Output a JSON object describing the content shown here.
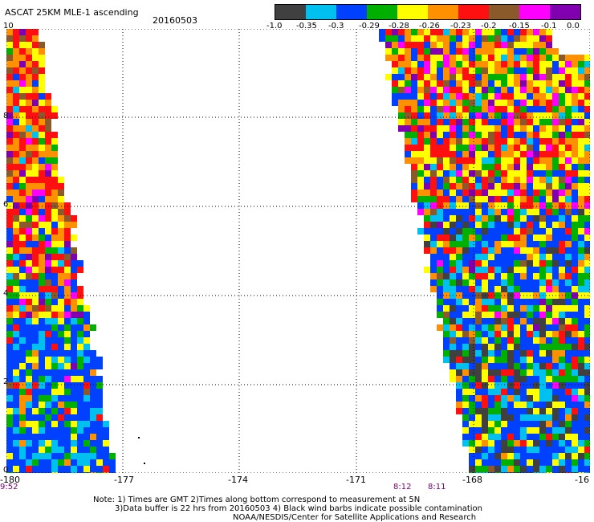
{
  "header": {
    "title": "ASCAT 25KM MLE-1 ascending",
    "date": "20160503"
  },
  "colorbar": {
    "colors": [
      "#404040",
      "#00c0f0",
      "#0040ff",
      "#00b000",
      "#ffff00",
      "#ff9000",
      "#ff1010",
      "#8b5a2b",
      "#ff00ff",
      "#8000b0"
    ],
    "labels": [
      "-1.0",
      "-0.35",
      "-0.3",
      "-0.29",
      "-0.28",
      "-0.26",
      "-0.23",
      "-0.2",
      "-0.15",
      "-0.1",
      "0.0"
    ]
  },
  "axes": {
    "lon_labels": [
      "-180",
      "-177",
      "-174",
      "-171",
      "-168",
      "-16"
    ],
    "lat_labels": [
      "10",
      "8",
      "6",
      "4",
      "2",
      "0"
    ],
    "grid": "dotted"
  },
  "times": {
    "left": "9:52",
    "right_a": "8:12",
    "right_b": "8:11"
  },
  "footer": {
    "note_line1": "Note: 1) Times are GMT 2)Times along bottom correspond to measurement at 5N",
    "note_line2": "3)Data buffer is 22 hrs from 20160503 4) Black wind barbs indicate possible contamination",
    "credit": "NOAA/NESDIS/Center for Satellite Applications and Research"
  }
}
